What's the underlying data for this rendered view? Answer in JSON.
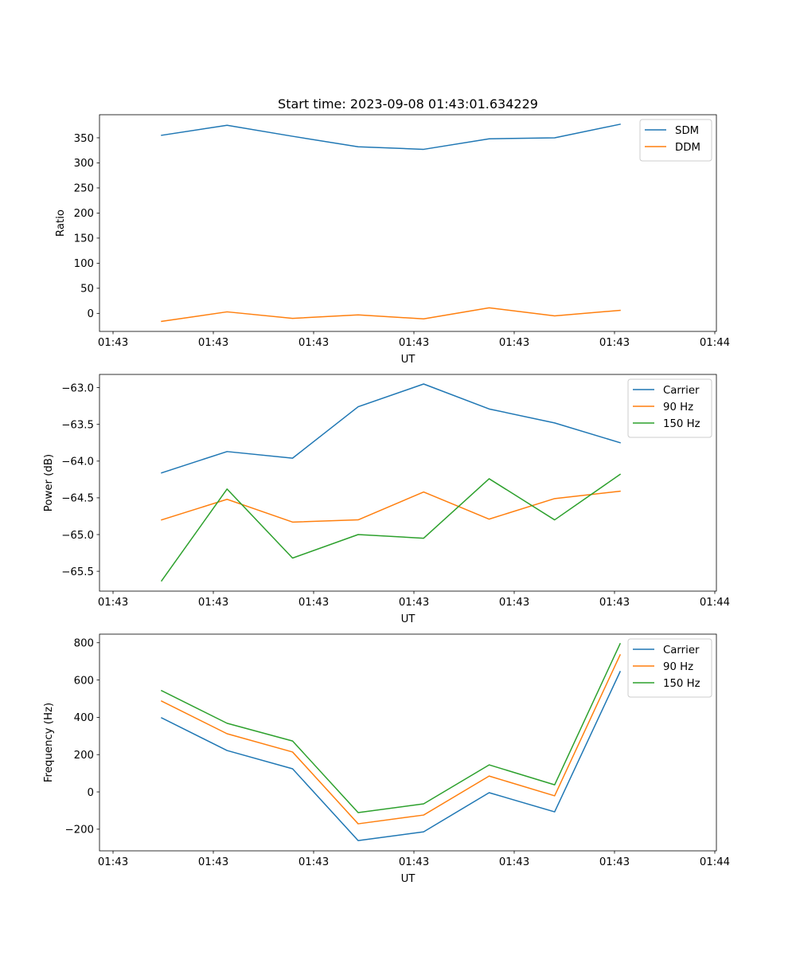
{
  "figure": {
    "title": "Start time: 2023-09-08 01:43:01.634229"
  },
  "chart_data": [
    {
      "type": "line",
      "title": "Start time: 2023-09-08 01:43:01.634229",
      "xlabel": "UT",
      "ylabel": "Ratio",
      "x": [
        0.484,
        1.137,
        1.79,
        2.444,
        3.097,
        3.75,
        4.403,
        5.056
      ],
      "xlim": [
        -0.135,
        6.016
      ],
      "xticks": [
        0,
        1,
        2,
        3,
        4,
        5,
        6
      ],
      "xtick_labels": [
        "01:43",
        "01:43",
        "01:43",
        "01:43",
        "01:43",
        "01:43",
        "01:44"
      ],
      "ylim": [
        -36,
        396
      ],
      "yticks": [
        0,
        50,
        100,
        150,
        200,
        250,
        300,
        350
      ],
      "ytick_labels": [
        "0",
        "50",
        "100",
        "150",
        "200",
        "250",
        "300",
        "350"
      ],
      "grid": false,
      "legend_position": "top-right",
      "series": [
        {
          "name": "SDM",
          "color": "#1f77b4",
          "values": [
            355,
            375,
            353,
            332,
            327,
            348,
            350,
            377
          ]
        },
        {
          "name": "DDM",
          "color": "#ff7f0e",
          "values": [
            -16,
            3,
            -10,
            -3,
            -11,
            11,
            -5,
            6
          ]
        }
      ]
    },
    {
      "type": "line",
      "title": "",
      "xlabel": "UT",
      "ylabel": "Power (dB)",
      "x": [
        0.484,
        1.137,
        1.79,
        2.444,
        3.097,
        3.75,
        4.403,
        5.056
      ],
      "xlim": [
        -0.135,
        6.016
      ],
      "xticks": [
        0,
        1,
        2,
        3,
        4,
        5,
        6
      ],
      "xtick_labels": [
        "01:43",
        "01:43",
        "01:43",
        "01:43",
        "01:43",
        "01:43",
        "01:44"
      ],
      "ylim": [
        -65.77,
        -62.82
      ],
      "yticks": [
        -65.5,
        -65.0,
        -64.5,
        -64.0,
        -63.5,
        -63.0
      ],
      "ytick_labels": [
        "−65.5",
        "−65.0",
        "−64.5",
        "−64.0",
        "−63.5",
        "−63.0"
      ],
      "grid": false,
      "legend_position": "top-right",
      "series": [
        {
          "name": "Carrier",
          "color": "#1f77b4",
          "values": [
            -64.16,
            -63.87,
            -63.96,
            -63.26,
            -62.95,
            -63.29,
            -63.48,
            -63.75
          ]
        },
        {
          "name": "90 Hz",
          "color": "#ff7f0e",
          "values": [
            -64.8,
            -64.52,
            -64.83,
            -64.8,
            -64.42,
            -64.79,
            -64.51,
            -64.41
          ]
        },
        {
          "name": "150 Hz",
          "color": "#2ca02c",
          "values": [
            -65.63,
            -64.38,
            -65.32,
            -65.0,
            -65.05,
            -64.24,
            -64.8,
            -64.18
          ]
        }
      ]
    },
    {
      "type": "line",
      "title": "",
      "xlabel": "UT",
      "ylabel": "Frequency (Hz)",
      "x": [
        0.484,
        1.137,
        1.79,
        2.444,
        3.097,
        3.75,
        4.403,
        5.056
      ],
      "xlim": [
        -0.135,
        6.016
      ],
      "xticks": [
        0,
        1,
        2,
        3,
        4,
        5,
        6
      ],
      "xtick_labels": [
        "01:43",
        "01:43",
        "01:43",
        "01:43",
        "01:43",
        "01:43",
        "01:44"
      ],
      "ylim": [
        -316,
        846
      ],
      "yticks": [
        -200,
        0,
        200,
        400,
        600,
        800
      ],
      "ytick_labels": [
        "−200",
        "0",
        "200",
        "400",
        "600",
        "800"
      ],
      "grid": false,
      "legend_position": "top-right",
      "series": [
        {
          "name": "Carrier",
          "color": "#1f77b4",
          "values": [
            397,
            222,
            124,
            -261,
            -214,
            -4,
            -107,
            645
          ]
        },
        {
          "name": "90 Hz",
          "color": "#ff7f0e",
          "values": [
            487,
            312,
            214,
            -171,
            -124,
            85,
            -21,
            735
          ]
        },
        {
          "name": "150 Hz",
          "color": "#2ca02c",
          "values": [
            543,
            368,
            273,
            -111,
            -64,
            145,
            38,
            795
          ]
        }
      ]
    }
  ]
}
